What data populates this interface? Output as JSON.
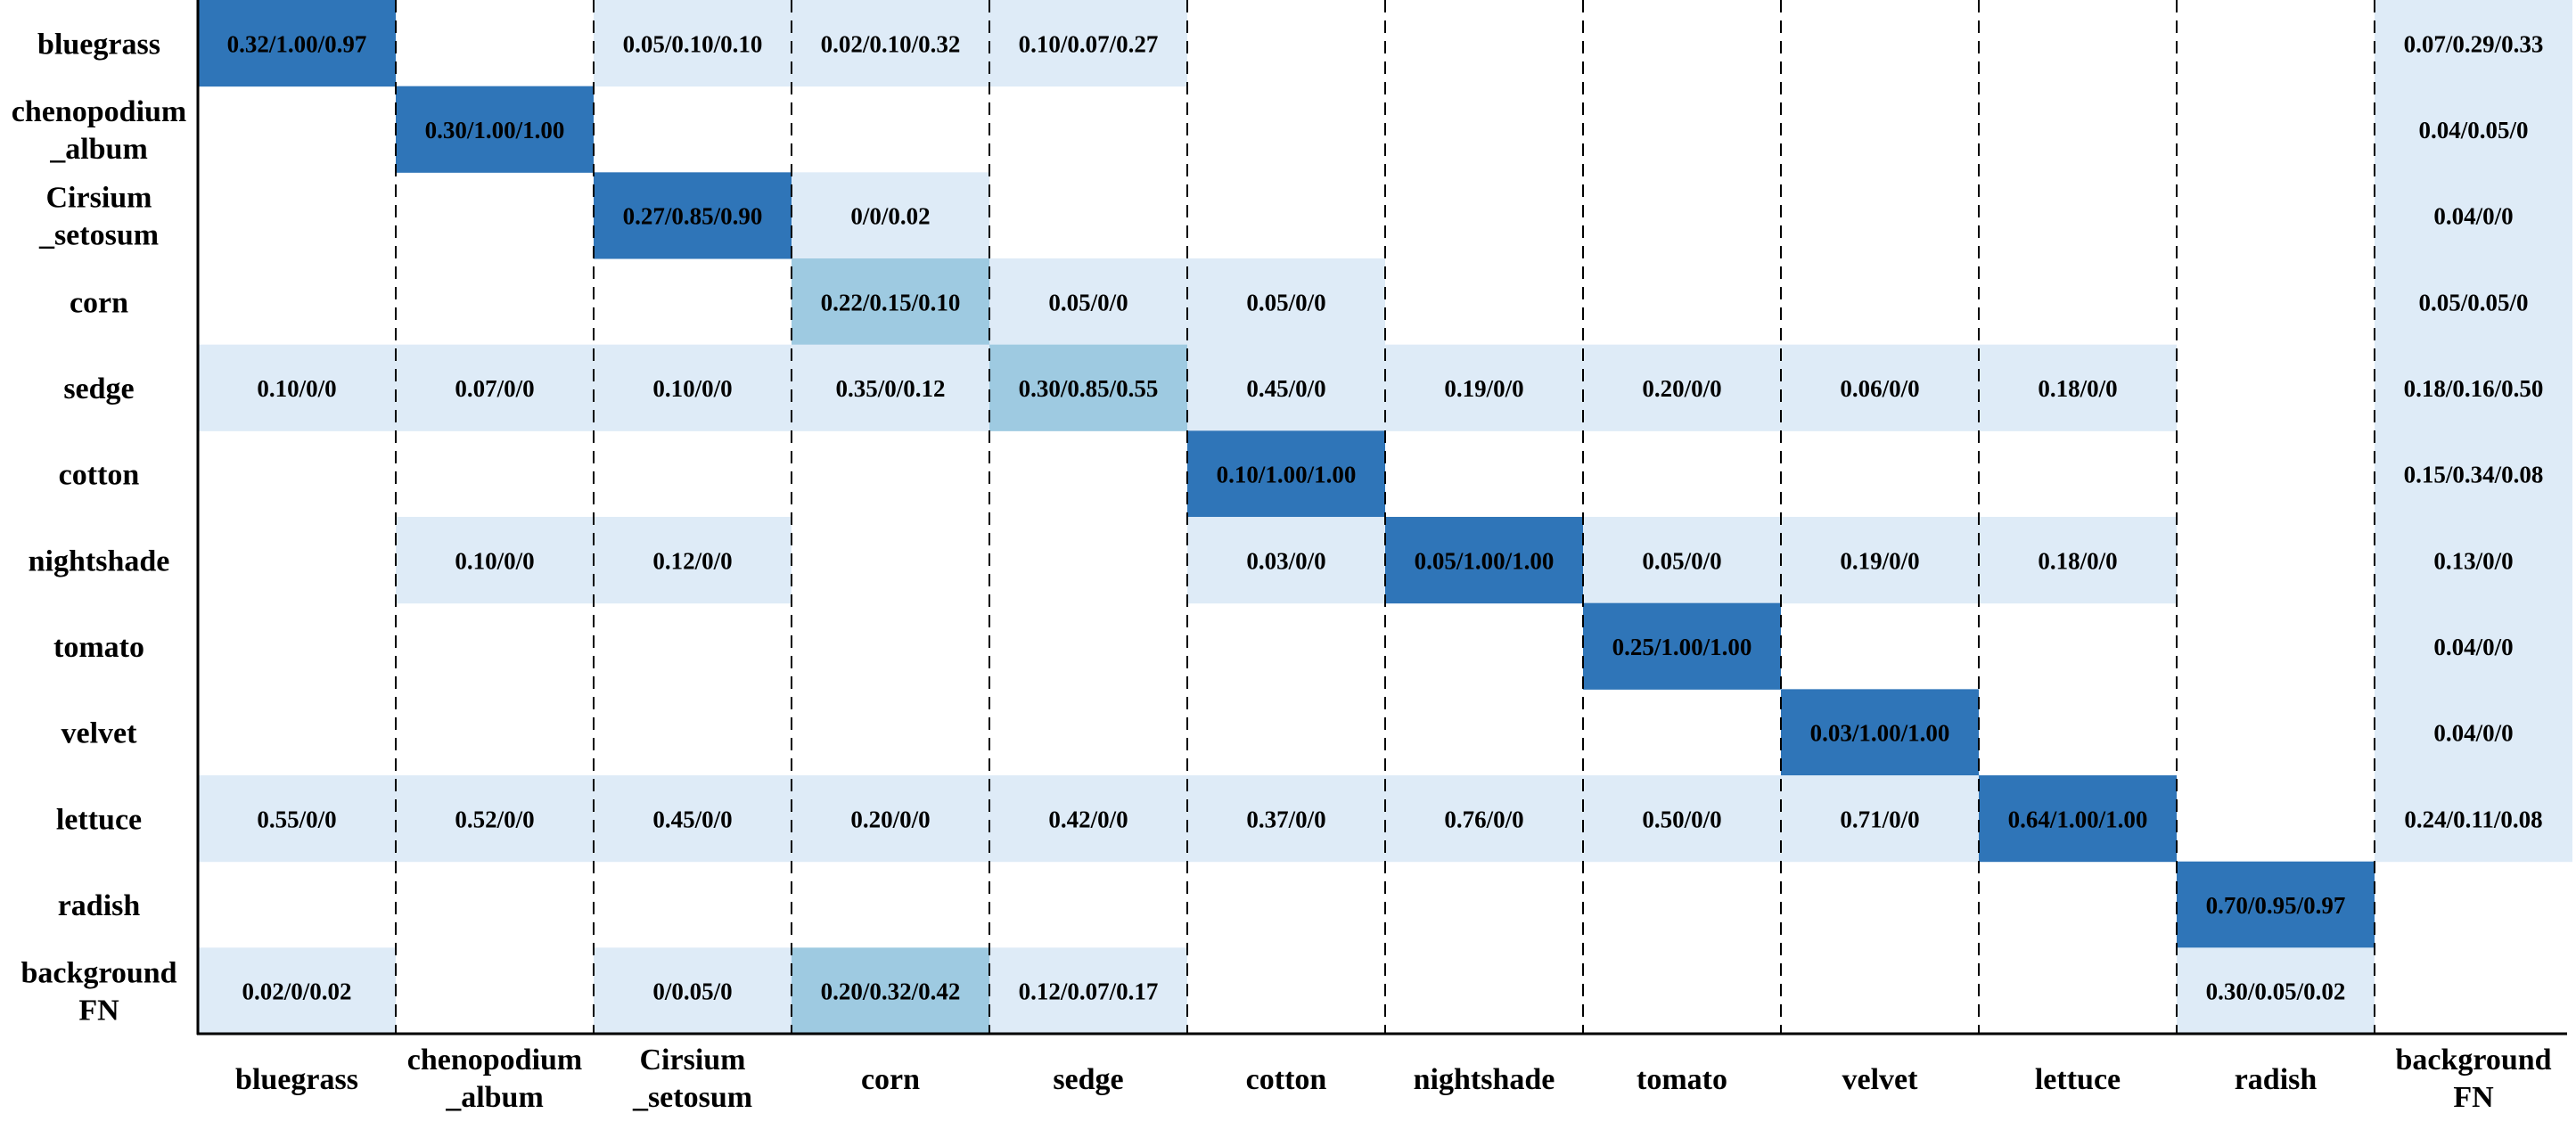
{
  "chart_data": {
    "type": "heatmap",
    "rows": [
      "bluegrass",
      "chenopodium\n_album",
      "Cirsium\n_setosum",
      "corn",
      "sedge",
      "cotton",
      "nightshade",
      "tomato",
      "velvet",
      "lettuce",
      "radish",
      "background\nFN"
    ],
    "columns": [
      "bluegrass",
      "chenopodium\n_album",
      "Cirsium\n_setosum",
      "corn",
      "sedge",
      "cotton",
      "nightshade",
      "tomato",
      "velvet",
      "lettuce",
      "radish",
      "background\nFN"
    ],
    "cells": [
      [
        "0.32/1.00/0.97",
        "",
        "0.05/0.10/0.10",
        "0.02/0.10/0.32",
        "0.10/0.07/0.27",
        "",
        "",
        "",
        "",
        "",
        "",
        "0.07/0.29/0.33"
      ],
      [
        "",
        "0.30/1.00/1.00",
        "",
        "",
        "",
        "",
        "",
        "",
        "",
        "",
        "",
        "0.04/0.05/0"
      ],
      [
        "",
        "",
        "0.27/0.85/0.90",
        "0/0/0.02",
        "",
        "",
        "",
        "",
        "",
        "",
        "",
        "0.04/0/0"
      ],
      [
        "",
        "",
        "",
        "0.22/0.15/0.10",
        "0.05/0/0",
        "0.05/0/0",
        "",
        "",
        "",
        "",
        "",
        "0.05/0.05/0"
      ],
      [
        "0.10/0/0",
        "0.07/0/0",
        "0.10/0/0",
        "0.35/0/0.12",
        "0.30/0.85/0.55",
        "0.45/0/0",
        "0.19/0/0",
        "0.20/0/0",
        "0.06/0/0",
        "0.18/0/0",
        "",
        "0.18/0.16/0.50"
      ],
      [
        "",
        "",
        "",
        "",
        "",
        "0.10/1.00/1.00",
        "",
        "",
        "",
        "",
        "",
        "0.15/0.34/0.08"
      ],
      [
        "",
        "0.10/0/0",
        "0.12/0/0",
        "",
        "",
        "0.03/0/0",
        "0.05/1.00/1.00",
        "0.05/0/0",
        "0.19/0/0",
        "0.18/0/0",
        "",
        "0.13/0/0"
      ],
      [
        "",
        "",
        "",
        "",
        "",
        "",
        "",
        "0.25/1.00/1.00",
        "",
        "",
        "",
        "0.04/0/0"
      ],
      [
        "",
        "",
        "",
        "",
        "",
        "",
        "",
        "",
        "0.03/1.00/1.00",
        "",
        "",
        "0.04/0/0"
      ],
      [
        "0.55/0/0",
        "0.52/0/0",
        "0.45/0/0",
        "0.20/0/0",
        "0.42/0/0",
        "0.37/0/0",
        "0.76/0/0",
        "0.50/0/0",
        "0.71/0/0",
        "0.64/1.00/1.00",
        "",
        "0.24/0.11/0.08"
      ],
      [
        "",
        "",
        "",
        "",
        "",
        "",
        "",
        "",
        "",
        "",
        "0.70/0.95/0.97",
        ""
      ],
      [
        "0.02/0/0.02",
        "",
        "0/0.05/0",
        "0.20/0.32/0.42",
        "0.12/0.07/0.17",
        "",
        "",
        "",
        "",
        "",
        "0.30/0.05/0.02",
        ""
      ]
    ],
    "intensity": [
      [
        3,
        0,
        1,
        1,
        1,
        0,
        0,
        0,
        0,
        0,
        0,
        1
      ],
      [
        0,
        3,
        0,
        0,
        0,
        0,
        0,
        0,
        0,
        0,
        0,
        1
      ],
      [
        0,
        0,
        3,
        1,
        0,
        0,
        0,
        0,
        0,
        0,
        0,
        1
      ],
      [
        0,
        0,
        0,
        2,
        1,
        1,
        0,
        0,
        0,
        0,
        0,
        1
      ],
      [
        1,
        1,
        1,
        1,
        2,
        1,
        1,
        1,
        1,
        1,
        0,
        1
      ],
      [
        0,
        0,
        0,
        0,
        0,
        3,
        0,
        0,
        0,
        0,
        0,
        1
      ],
      [
        0,
        1,
        1,
        0,
        0,
        1,
        3,
        1,
        1,
        1,
        0,
        1
      ],
      [
        0,
        0,
        0,
        0,
        0,
        0,
        0,
        3,
        0,
        0,
        0,
        1
      ],
      [
        0,
        0,
        0,
        0,
        0,
        0,
        0,
        0,
        3,
        0,
        0,
        1
      ],
      [
        1,
        1,
        1,
        1,
        1,
        1,
        1,
        1,
        1,
        3,
        0,
        1
      ],
      [
        0,
        0,
        0,
        0,
        0,
        0,
        0,
        0,
        0,
        0,
        3,
        0
      ],
      [
        1,
        0,
        1,
        2,
        1,
        0,
        0,
        0,
        0,
        0,
        1,
        0
      ]
    ],
    "colors": {
      "level0": "#ffffff",
      "level1": "#deebf7",
      "level2": "#9ecae1",
      "level3": "#2f75b8",
      "grid": "#000000"
    },
    "grid": "dashed column separators",
    "legend": "none"
  }
}
